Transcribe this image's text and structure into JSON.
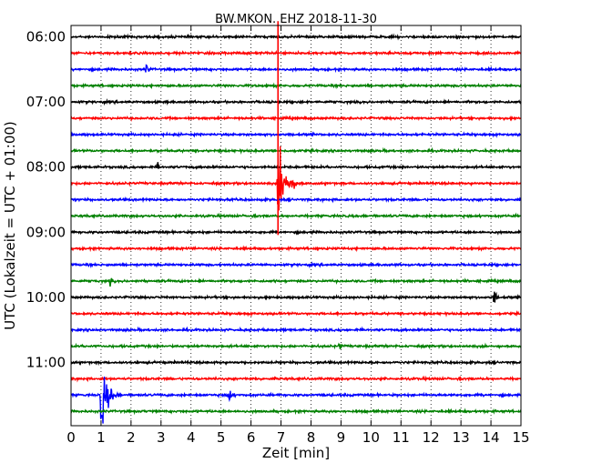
{
  "chart_data": {
    "type": "line",
    "title": "BW.MKON..EHZ 2018-11-30",
    "xlabel": "Zeit  [min]",
    "ylabel": "UTC (Lokalzeit = UTC + 01:00)",
    "xlim": [
      0,
      15
    ],
    "x_ticks": [
      "0",
      "1",
      "2",
      "3",
      "4",
      "5",
      "6",
      "7",
      "8",
      "9",
      "10",
      "11",
      "12",
      "13",
      "14",
      "15"
    ],
    "y_ticks": [
      {
        "label": "06:00",
        "trace": 0
      },
      {
        "label": "07:00",
        "trace": 4
      },
      {
        "label": "08:00",
        "trace": 8
      },
      {
        "label": "09:00",
        "trace": 12
      },
      {
        "label": "10:00",
        "trace": 16
      },
      {
        "label": "11:00",
        "trace": 20
      }
    ],
    "grid": "vertical dotted",
    "trace_colors": [
      "#000000",
      "#ff0000",
      "#0000ff",
      "#008000"
    ],
    "traces_count": 24,
    "trace_interval_min": 15,
    "events": [
      {
        "trace": 1,
        "minute": 6.9,
        "amplitude": "overflow",
        "type": "vertical-line"
      },
      {
        "trace": 9,
        "minute": 6.9,
        "amplitude": "large",
        "coda": 1.0
      },
      {
        "trace": 22,
        "minute": 1.0,
        "amplitude": "large",
        "coda": 0.8
      },
      {
        "trace": 22,
        "minute": 5.25,
        "amplitude": "medium",
        "coda": 0.4
      },
      {
        "trace": 16,
        "minute": 14.1,
        "amplitude": "medium",
        "coda": 0.3
      },
      {
        "trace": 19,
        "minute": 8.95,
        "amplitude": "small",
        "coda": 0.3
      },
      {
        "trace": 8,
        "minute": 2.9,
        "amplitude": "small",
        "coda": 0.2
      },
      {
        "trace": 2,
        "minute": 2.5,
        "amplitude": "small",
        "coda": 0.5
      },
      {
        "trace": 15,
        "minute": 1.3,
        "amplitude": "small",
        "coda": 0.3
      }
    ]
  }
}
